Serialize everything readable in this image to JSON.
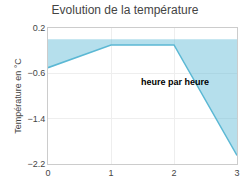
{
  "chart_data": {
    "type": "area",
    "title": "Evolution de la température",
    "xlabel": "heure par heure",
    "ylabel": "Température en °C",
    "x": [
      0,
      1,
      2,
      3
    ],
    "values": [
      -0.5,
      -0.1,
      -0.1,
      -2.05
    ],
    "color": "#5bb8d4",
    "xlim": [
      0,
      3
    ],
    "ylim": [
      -2.2,
      0.2
    ],
    "xticks": [
      0,
      1,
      2,
      3
    ],
    "yticks": [
      0.2,
      -0.6,
      -1.4,
      -2.2
    ],
    "grid": true
  }
}
